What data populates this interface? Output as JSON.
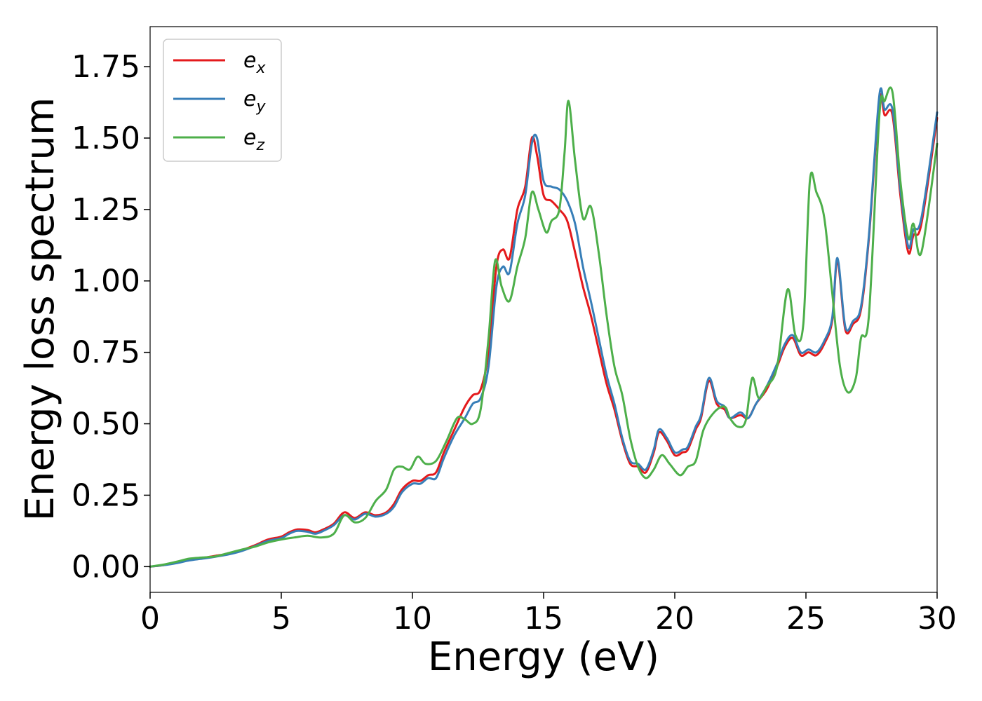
{
  "chart_data": {
    "type": "line",
    "title": "",
    "xlabel": "Energy (eV)",
    "ylabel": "Energy loss spectrum",
    "xlim": [
      0,
      30
    ],
    "ylim": [
      -0.09,
      1.89
    ],
    "xticks": [
      0,
      5,
      10,
      15,
      20,
      25,
      30
    ],
    "xtick_labels": [
      "0",
      "5",
      "10",
      "15",
      "20",
      "25",
      "30"
    ],
    "yticks": [
      0.0,
      0.25,
      0.5,
      0.75,
      1.0,
      1.25,
      1.5,
      1.75
    ],
    "ytick_labels": [
      "0.00",
      "0.25",
      "0.50",
      "0.75",
      "1.00",
      "1.25",
      "1.50",
      "1.75"
    ],
    "grid": false,
    "legend_position": "top-left",
    "series": [
      {
        "name": "e_x",
        "label_base": "e",
        "label_sub": "x",
        "color": "#e41a1c",
        "points": [
          [
            0,
            0
          ],
          [
            0.5,
            0.005
          ],
          [
            1,
            0.015
          ],
          [
            1.5,
            0.025
          ],
          [
            2,
            0.03
          ],
          [
            2.5,
            0.038
          ],
          [
            3,
            0.045
          ],
          [
            3.5,
            0.058
          ],
          [
            4,
            0.075
          ],
          [
            4.5,
            0.095
          ],
          [
            5,
            0.105
          ],
          [
            5.3,
            0.12
          ],
          [
            5.6,
            0.13
          ],
          [
            6,
            0.128
          ],
          [
            6.3,
            0.12
          ],
          [
            6.6,
            0.13
          ],
          [
            7,
            0.15
          ],
          [
            7.4,
            0.19
          ],
          [
            7.8,
            0.17
          ],
          [
            8.2,
            0.19
          ],
          [
            8.6,
            0.18
          ],
          [
            9,
            0.19
          ],
          [
            9.3,
            0.22
          ],
          [
            9.6,
            0.27
          ],
          [
            10,
            0.3
          ],
          [
            10.3,
            0.3
          ],
          [
            10.6,
            0.32
          ],
          [
            10.9,
            0.33
          ],
          [
            11.2,
            0.4
          ],
          [
            11.6,
            0.48
          ],
          [
            12,
            0.56
          ],
          [
            12.3,
            0.6
          ],
          [
            12.6,
            0.62
          ],
          [
            12.9,
            0.75
          ],
          [
            13.2,
            1.05
          ],
          [
            13.45,
            1.11
          ],
          [
            13.7,
            1.08
          ],
          [
            14,
            1.25
          ],
          [
            14.3,
            1.33
          ],
          [
            14.55,
            1.5
          ],
          [
            14.75,
            1.44
          ],
          [
            15,
            1.3
          ],
          [
            15.3,
            1.28
          ],
          [
            15.6,
            1.25
          ],
          [
            15.9,
            1.21
          ],
          [
            16.2,
            1.1
          ],
          [
            16.5,
            0.98
          ],
          [
            16.8,
            0.88
          ],
          [
            17.1,
            0.76
          ],
          [
            17.4,
            0.64
          ],
          [
            17.7,
            0.55
          ],
          [
            18,
            0.44
          ],
          [
            18.3,
            0.36
          ],
          [
            18.6,
            0.35
          ],
          [
            18.9,
            0.33
          ],
          [
            19.2,
            0.4
          ],
          [
            19.4,
            0.47
          ],
          [
            19.7,
            0.44
          ],
          [
            20,
            0.39
          ],
          [
            20.3,
            0.4
          ],
          [
            20.5,
            0.41
          ],
          [
            20.8,
            0.48
          ],
          [
            21,
            0.52
          ],
          [
            21.3,
            0.65
          ],
          [
            21.6,
            0.57
          ],
          [
            21.9,
            0.55
          ],
          [
            22.1,
            0.52
          ],
          [
            22.5,
            0.53
          ],
          [
            22.8,
            0.52
          ],
          [
            23.1,
            0.57
          ],
          [
            23.5,
            0.62
          ],
          [
            23.9,
            0.7
          ],
          [
            24.2,
            0.77
          ],
          [
            24.5,
            0.8
          ],
          [
            24.8,
            0.74
          ],
          [
            25.1,
            0.75
          ],
          [
            25.4,
            0.74
          ],
          [
            25.7,
            0.78
          ],
          [
            26,
            0.86
          ],
          [
            26.2,
            1.07
          ],
          [
            26.5,
            0.83
          ],
          [
            26.8,
            0.85
          ],
          [
            27.1,
            0.9
          ],
          [
            27.4,
            1.15
          ],
          [
            27.8,
            1.63
          ],
          [
            28,
            1.58
          ],
          [
            28.3,
            1.58
          ],
          [
            28.6,
            1.3
          ],
          [
            28.9,
            1.1
          ],
          [
            29.1,
            1.16
          ],
          [
            29.4,
            1.2
          ],
          [
            30,
            1.57
          ]
        ]
      },
      {
        "name": "e_y",
        "label_base": "e",
        "label_sub": "y",
        "color": "#377eb8",
        "points": [
          [
            0,
            0
          ],
          [
            0.5,
            0.005
          ],
          [
            1,
            0.012
          ],
          [
            1.5,
            0.022
          ],
          [
            2,
            0.028
          ],
          [
            2.5,
            0.035
          ],
          [
            3,
            0.043
          ],
          [
            3.5,
            0.055
          ],
          [
            4,
            0.072
          ],
          [
            4.5,
            0.09
          ],
          [
            5,
            0.1
          ],
          [
            5.3,
            0.115
          ],
          [
            5.6,
            0.125
          ],
          [
            6,
            0.122
          ],
          [
            6.3,
            0.115
          ],
          [
            6.6,
            0.125
          ],
          [
            7,
            0.145
          ],
          [
            7.4,
            0.18
          ],
          [
            7.8,
            0.165
          ],
          [
            8.2,
            0.185
          ],
          [
            8.6,
            0.175
          ],
          [
            9,
            0.185
          ],
          [
            9.3,
            0.21
          ],
          [
            9.6,
            0.26
          ],
          [
            10,
            0.29
          ],
          [
            10.3,
            0.29
          ],
          [
            10.6,
            0.31
          ],
          [
            10.9,
            0.31
          ],
          [
            11.2,
            0.38
          ],
          [
            11.6,
            0.46
          ],
          [
            12,
            0.52
          ],
          [
            12.3,
            0.57
          ],
          [
            12.6,
            0.59
          ],
          [
            12.9,
            0.7
          ],
          [
            13.2,
            0.98
          ],
          [
            13.45,
            1.05
          ],
          [
            13.7,
            1.03
          ],
          [
            14,
            1.2
          ],
          [
            14.3,
            1.3
          ],
          [
            14.55,
            1.48
          ],
          [
            14.75,
            1.5
          ],
          [
            15,
            1.35
          ],
          [
            15.3,
            1.33
          ],
          [
            15.6,
            1.32
          ],
          [
            15.9,
            1.28
          ],
          [
            16.2,
            1.2
          ],
          [
            16.5,
            1.05
          ],
          [
            16.8,
            0.93
          ],
          [
            17.1,
            0.8
          ],
          [
            17.4,
            0.67
          ],
          [
            17.7,
            0.57
          ],
          [
            18,
            0.45
          ],
          [
            18.3,
            0.37
          ],
          [
            18.6,
            0.36
          ],
          [
            18.9,
            0.34
          ],
          [
            19.2,
            0.41
          ],
          [
            19.4,
            0.48
          ],
          [
            19.7,
            0.45
          ],
          [
            20,
            0.4
          ],
          [
            20.3,
            0.41
          ],
          [
            20.5,
            0.42
          ],
          [
            20.8,
            0.49
          ],
          [
            21,
            0.53
          ],
          [
            21.3,
            0.66
          ],
          [
            21.6,
            0.58
          ],
          [
            21.9,
            0.56
          ],
          [
            22.1,
            0.52
          ],
          [
            22.5,
            0.54
          ],
          [
            22.8,
            0.52
          ],
          [
            23.1,
            0.57
          ],
          [
            23.5,
            0.63
          ],
          [
            23.9,
            0.71
          ],
          [
            24.2,
            0.78
          ],
          [
            24.5,
            0.81
          ],
          [
            24.8,
            0.75
          ],
          [
            25.1,
            0.76
          ],
          [
            25.4,
            0.75
          ],
          [
            25.7,
            0.79
          ],
          [
            26,
            0.87
          ],
          [
            26.2,
            1.08
          ],
          [
            26.5,
            0.84
          ],
          [
            26.8,
            0.86
          ],
          [
            27.1,
            0.91
          ],
          [
            27.4,
            1.16
          ],
          [
            27.8,
            1.65
          ],
          [
            28,
            1.6
          ],
          [
            28.3,
            1.6
          ],
          [
            28.6,
            1.32
          ],
          [
            28.9,
            1.12
          ],
          [
            29.1,
            1.18
          ],
          [
            29.4,
            1.22
          ],
          [
            30,
            1.59
          ]
        ]
      },
      {
        "name": "e_z",
        "label_base": "e",
        "label_sub": "z",
        "color": "#4daf4a",
        "points": [
          [
            0,
            0
          ],
          [
            0.5,
            0.007
          ],
          [
            1,
            0.017
          ],
          [
            1.5,
            0.028
          ],
          [
            2,
            0.032
          ],
          [
            2.5,
            0.036
          ],
          [
            3,
            0.048
          ],
          [
            3.5,
            0.06
          ],
          [
            4,
            0.07
          ],
          [
            4.5,
            0.085
          ],
          [
            5,
            0.095
          ],
          [
            5.5,
            0.102
          ],
          [
            6,
            0.108
          ],
          [
            6.5,
            0.102
          ],
          [
            7,
            0.115
          ],
          [
            7.4,
            0.18
          ],
          [
            7.8,
            0.155
          ],
          [
            8.2,
            0.17
          ],
          [
            8.6,
            0.23
          ],
          [
            9,
            0.27
          ],
          [
            9.3,
            0.34
          ],
          [
            9.6,
            0.35
          ],
          [
            9.9,
            0.34
          ],
          [
            10.2,
            0.385
          ],
          [
            10.5,
            0.36
          ],
          [
            10.9,
            0.37
          ],
          [
            11.3,
            0.44
          ],
          [
            11.7,
            0.52
          ],
          [
            12,
            0.515
          ],
          [
            12.3,
            0.5
          ],
          [
            12.6,
            0.55
          ],
          [
            12.9,
            0.8
          ],
          [
            13.15,
            1.07
          ],
          [
            13.4,
            0.98
          ],
          [
            13.7,
            0.93
          ],
          [
            14,
            1.05
          ],
          [
            14.3,
            1.15
          ],
          [
            14.55,
            1.31
          ],
          [
            14.8,
            1.25
          ],
          [
            15.1,
            1.17
          ],
          [
            15.3,
            1.21
          ],
          [
            15.6,
            1.25
          ],
          [
            15.8,
            1.45
          ],
          [
            15.95,
            1.63
          ],
          [
            16.2,
            1.42
          ],
          [
            16.5,
            1.22
          ],
          [
            16.8,
            1.26
          ],
          [
            17.1,
            1.1
          ],
          [
            17.4,
            0.88
          ],
          [
            17.7,
            0.7
          ],
          [
            18,
            0.6
          ],
          [
            18.3,
            0.45
          ],
          [
            18.6,
            0.35
          ],
          [
            18.9,
            0.31
          ],
          [
            19.2,
            0.34
          ],
          [
            19.5,
            0.39
          ],
          [
            19.8,
            0.36
          ],
          [
            20.2,
            0.32
          ],
          [
            20.5,
            0.35
          ],
          [
            20.8,
            0.37
          ],
          [
            21.1,
            0.48
          ],
          [
            21.5,
            0.54
          ],
          [
            21.9,
            0.56
          ],
          [
            22.1,
            0.52
          ],
          [
            22.4,
            0.49
          ],
          [
            22.7,
            0.51
          ],
          [
            22.95,
            0.66
          ],
          [
            23.2,
            0.59
          ],
          [
            23.5,
            0.63
          ],
          [
            23.9,
            0.7
          ],
          [
            24.3,
            0.97
          ],
          [
            24.6,
            0.81
          ],
          [
            24.9,
            0.85
          ],
          [
            25.15,
            1.35
          ],
          [
            25.4,
            1.31
          ],
          [
            25.7,
            1.22
          ],
          [
            26,
            0.96
          ],
          [
            26.3,
            0.7
          ],
          [
            26.6,
            0.61
          ],
          [
            26.9,
            0.66
          ],
          [
            27.1,
            0.8
          ],
          [
            27.4,
            0.88
          ],
          [
            27.8,
            1.58
          ],
          [
            28,
            1.63
          ],
          [
            28.3,
            1.66
          ],
          [
            28.6,
            1.35
          ],
          [
            28.9,
            1.15
          ],
          [
            29.1,
            1.2
          ],
          [
            29.4,
            1.1
          ],
          [
            30,
            1.48
          ]
        ]
      }
    ]
  }
}
